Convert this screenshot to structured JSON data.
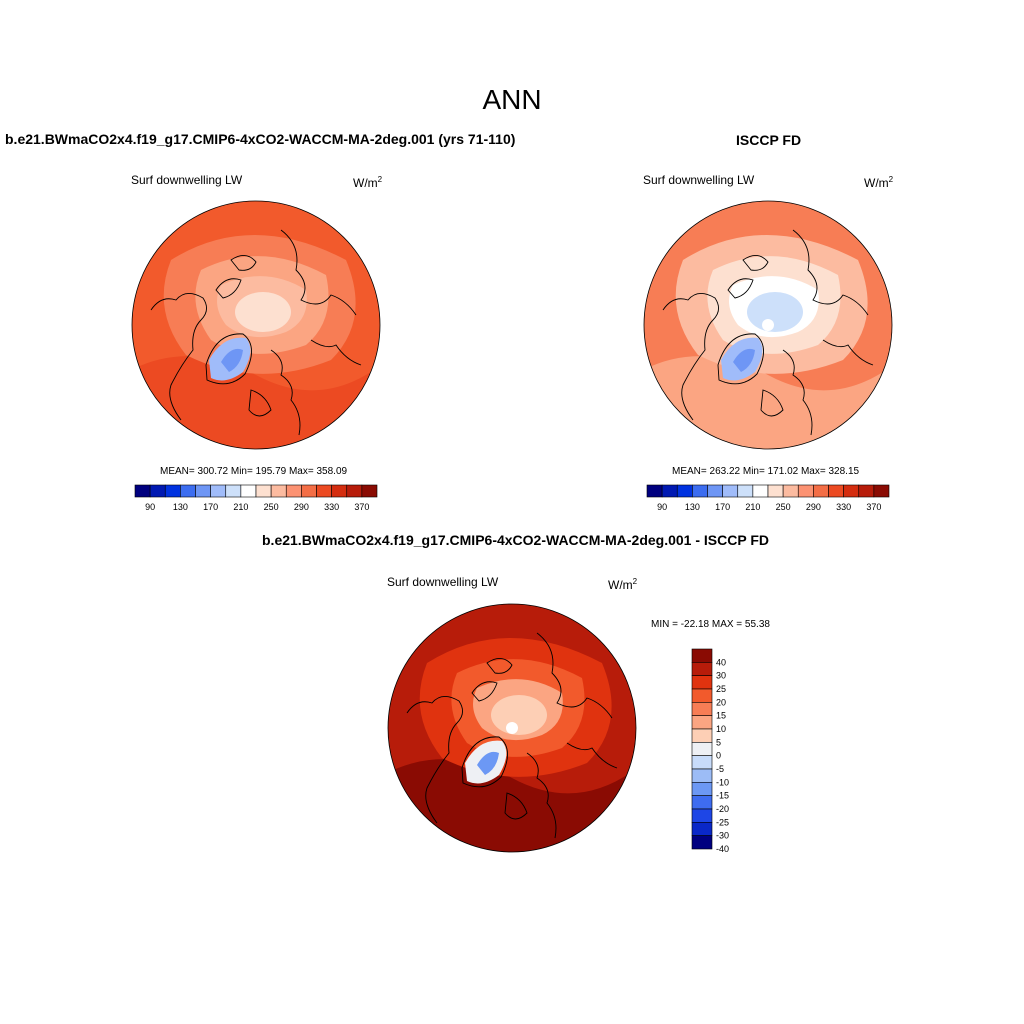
{
  "title": "ANN",
  "panels": [
    {
      "title": "b.e21.BWmaCO2x4.f19_g17.CMIP6-4xCO2-WACCM-MA-2deg.001 (yrs 71-110)",
      "variable": "Surf downwelling LW",
      "units_base": "W/m",
      "units_exp": "2",
      "stats": "MEAN= 300.72  Min= 195.79  Max= 358.09"
    },
    {
      "title": "ISCCP FD",
      "variable": "Surf downwelling LW",
      "units_base": "W/m",
      "units_exp": "2",
      "stats": "MEAN= 263.22  Min= 171.02  Max= 328.15"
    },
    {
      "title": "b.e21.BWmaCO2x4.f19_g17.CMIP6-4xCO2-WACCM-MA-2deg.001 - ISCCP FD",
      "variable": "Surf downwelling LW",
      "units_base": "W/m",
      "units_exp": "2",
      "stats": "MIN = -22.18 MAX =  55.38"
    }
  ],
  "colorbar_abs": {
    "colors": [
      "#00007f",
      "#0019b2",
      "#0032e0",
      "#3c6df0",
      "#6e96f5",
      "#a0bcfa",
      "#cde0fa",
      "#ffffff",
      "#fde0d0",
      "#fcbba0",
      "#fc9272",
      "#f46e46",
      "#ec4a22",
      "#d42d0f",
      "#b71c0a",
      "#8a0b03"
    ],
    "tick_labels": [
      "90",
      "130",
      "170",
      "210",
      "250",
      "290",
      "330",
      "370"
    ]
  },
  "colorbar_diff": {
    "colors": [
      "#8a0b03",
      "#b71c0a",
      "#e0330f",
      "#f25a2c",
      "#f77d55",
      "#fba582",
      "#fdcfb5",
      "#eef0f4",
      "#c8dcfa",
      "#9cbcf6",
      "#6c98f4",
      "#3e6cf0",
      "#1e46e6",
      "#0a28c8",
      "#000080"
    ],
    "tick_labels": [
      "40",
      "30",
      "25",
      "20",
      "15",
      "10",
      "5",
      "0",
      "-5",
      "-10",
      "-15",
      "-20",
      "-25",
      "-30",
      "-40"
    ]
  },
  "map_colors": {
    "model": [
      "#f25a2c",
      "#ec4a22",
      "#f77d55",
      "#fba582",
      "#fcbba0",
      "#fde0d0",
      "#a0bcfa",
      "#6e96f5"
    ],
    "obs": [
      "#f77d55",
      "#fba582",
      "#fcbba0",
      "#fde0d0",
      "#ffffff",
      "#cde0fa",
      "#a0bcfa",
      "#6e96f5"
    ],
    "diff": [
      "#b71c0a",
      "#8a0b03",
      "#e0330f",
      "#f25a2c",
      "#fba582",
      "#fdcfb5",
      "#eef0f4",
      "#6c98f4"
    ],
    "coastline": "#000000",
    "pole_hole": "#ffffff"
  }
}
